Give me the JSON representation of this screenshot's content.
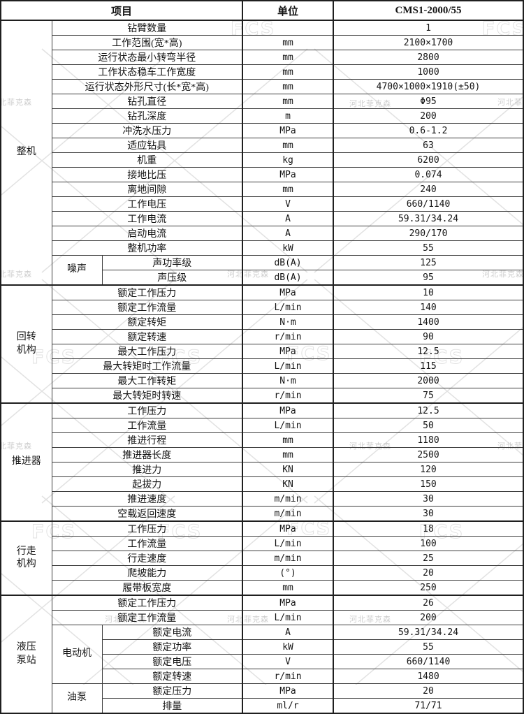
{
  "page": {
    "background": "#ffffff",
    "border_color": "#1f1f1f",
    "text_color": "#141414"
  },
  "header": {
    "item": "项目",
    "unit": "单位",
    "model": "CMS1-2000/55"
  },
  "watermark": {
    "logo": "FCS",
    "brand": "河北菲克森"
  },
  "table": {
    "groups": [
      {
        "label": "整机",
        "subgroups": [
          {
            "label": "噪声",
            "from": 16,
            "span": 2
          }
        ],
        "rows": [
          {
            "item": "钻臂数量",
            "unit": "",
            "value": "1"
          },
          {
            "item": "工作范围(宽*高)",
            "unit": "mm",
            "value": "2100×1700"
          },
          {
            "item": "运行状态最小转弯半径",
            "unit": "mm",
            "value": "2800"
          },
          {
            "item": "工作状态稳车工作宽度",
            "unit": "mm",
            "value": "1000"
          },
          {
            "item": "运行状态外形尺寸(长*宽*高)",
            "unit": "mm",
            "value": "4700×1000×1910(±50)"
          },
          {
            "item": "钻孔直径",
            "unit": "mm",
            "value": "Φ95"
          },
          {
            "item": "钻孔深度",
            "unit": "m",
            "value": "200"
          },
          {
            "item": "冲洗水压力",
            "unit": "MPa",
            "value": "0.6-1.2"
          },
          {
            "item": "适应钻具",
            "unit": "mm",
            "value": "63"
          },
          {
            "item": "机重",
            "unit": "kg",
            "value": "6200"
          },
          {
            "item": "接地比压",
            "unit": "MPa",
            "value": "0.074"
          },
          {
            "item": "离地间隙",
            "unit": "mm",
            "value": "240"
          },
          {
            "item": "工作电压",
            "unit": "V",
            "value": "660/1140"
          },
          {
            "item": "工作电流",
            "unit": "A",
            "value": "59.31/34.24"
          },
          {
            "item": "启动电流",
            "unit": "A",
            "value": "290/170"
          },
          {
            "item": "整机功率",
            "unit": "kW",
            "value": "55"
          },
          {
            "item": "声功率级",
            "unit": "dB(A)",
            "value": "125"
          },
          {
            "item": "声压级",
            "unit": "dB(A)",
            "value": "95"
          }
        ]
      },
      {
        "label": "回转\n机构",
        "subgroups": [],
        "rows": [
          {
            "item": "额定工作压力",
            "unit": "MPa",
            "value": "10"
          },
          {
            "item": "额定工作流量",
            "unit": "L/min",
            "value": "140"
          },
          {
            "item": "额定转矩",
            "unit": "N·m",
            "value": "1400"
          },
          {
            "item": "额定转速",
            "unit": "r/min",
            "value": "90"
          },
          {
            "item": "最大工作压力",
            "unit": "MPa",
            "value": "12.5"
          },
          {
            "item": "最大转矩时工作流量",
            "unit": "L/min",
            "value": "115"
          },
          {
            "item": "最大工作转矩",
            "unit": "N·m",
            "value": "2000"
          },
          {
            "item": "最大转矩时转速",
            "unit": "r/min",
            "value": "75"
          }
        ]
      },
      {
        "label": "推进器",
        "subgroups": [],
        "rows": [
          {
            "item": "工作压力",
            "unit": "MPa",
            "value": "12.5"
          },
          {
            "item": "工作流量",
            "unit": "L/min",
            "value": "50"
          },
          {
            "item": "推进行程",
            "unit": "mm",
            "value": "1180"
          },
          {
            "item": "推进器长度",
            "unit": "mm",
            "value": "2500"
          },
          {
            "item": "推进力",
            "unit": "KN",
            "value": "120"
          },
          {
            "item": "起拔力",
            "unit": "KN",
            "value": "150"
          },
          {
            "item": "推进速度",
            "unit": "m/min",
            "value": "30"
          },
          {
            "item": "空载返回速度",
            "unit": "m/min",
            "value": "30"
          }
        ]
      },
      {
        "label": "行走\n机构",
        "subgroups": [],
        "rows": [
          {
            "item": "工作压力",
            "unit": "MPa",
            "value": "18"
          },
          {
            "item": "工作流量",
            "unit": "L/min",
            "value": "100"
          },
          {
            "item": "行走速度",
            "unit": "m/min",
            "value": "25"
          },
          {
            "item": "爬坡能力",
            "unit": "(°)",
            "value": "20"
          },
          {
            "item": "履带板宽度",
            "unit": "mm",
            "value": "250"
          }
        ]
      },
      {
        "label": "液压\n泵站",
        "subgroups": [
          {
            "label": "电动机",
            "from": 2,
            "span": 4
          },
          {
            "label": "油泵",
            "from": 6,
            "span": 2
          }
        ],
        "rows": [
          {
            "item": "额定工作压力",
            "unit": "MPa",
            "value": "26"
          },
          {
            "item": "额定工作流量",
            "unit": "L/min",
            "value": "200"
          },
          {
            "item": "额定电流",
            "unit": "A",
            "value": "59.31/34.24"
          },
          {
            "item": "额定功率",
            "unit": "kW",
            "value": "55"
          },
          {
            "item": "额定电压",
            "unit": "V",
            "value": "660/1140"
          },
          {
            "item": "额定转速",
            "unit": "r/min",
            "value": "1480"
          },
          {
            "item": "额定压力",
            "unit": "MPa",
            "value": "20"
          },
          {
            "item": "排量",
            "unit": "ml/r",
            "value": "71/71"
          }
        ]
      }
    ]
  }
}
